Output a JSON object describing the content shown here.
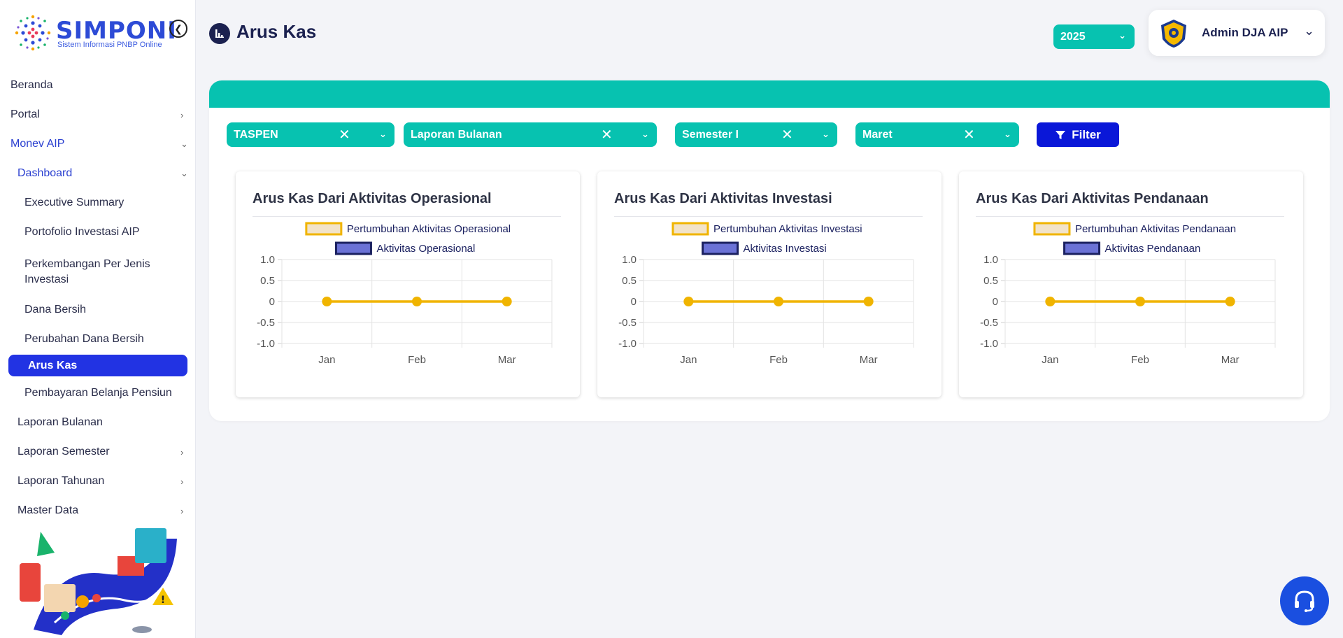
{
  "brand": {
    "name": "SIMPONI",
    "subtitle": "Sistem Informasi PNBP Online"
  },
  "nav": {
    "beranda": "Beranda",
    "portal": "Portal",
    "monev": "Monev AIP",
    "dashboard": "Dashboard",
    "executive_summary": "Executive Summary",
    "portofolio": "Portofolio Investasi AIP",
    "perkembangan": "Perkembangan Per Jenis Investasi",
    "dana_bersih": "Dana Bersih",
    "perubahan_dana": "Perubahan Dana Bersih",
    "arus_kas": "Arus Kas",
    "pembayaran": "Pembayaran Belanja Pensiun",
    "laporan_bulanan": "Laporan Bulanan",
    "laporan_semester": "Laporan Semester",
    "laporan_tahunan": "Laporan Tahunan",
    "master_data": "Master Data"
  },
  "header": {
    "title": "Arus Kas",
    "year": "2025",
    "user": "Admin DJA AIP"
  },
  "filters": {
    "entity": "TASPEN",
    "report": "Laporan Bulanan",
    "semester": "Semester I",
    "month": "Maret",
    "button": "Filter"
  },
  "colors": {
    "teal": "#07c2b0",
    "primary": "#0a17d8",
    "line": "#f0b400",
    "bar": "#6b72d6"
  },
  "chart_data": [
    {
      "type": "line",
      "title": "Arus Kas Dari Aktivitas Operasional",
      "categories": [
        "Jan",
        "Feb",
        "Mar"
      ],
      "series": [
        {
          "name": "Pertumbuhan Aktivitas Operasional",
          "values": [
            0,
            0,
            0
          ]
        },
        {
          "name": "Aktivitas Operasional",
          "values": [
            0,
            0,
            0
          ]
        }
      ],
      "yticks": [
        "1.0",
        "0.5",
        "0",
        "-0.5",
        "-1.0"
      ],
      "ylim": [
        -1,
        1
      ],
      "grid": true,
      "legend": "top"
    },
    {
      "type": "line",
      "title": "Arus Kas Dari Aktivitas Investasi",
      "categories": [
        "Jan",
        "Feb",
        "Mar"
      ],
      "series": [
        {
          "name": "Pertumbuhan Aktivitas Investasi",
          "values": [
            0,
            0,
            0
          ]
        },
        {
          "name": "Aktivitas Investasi",
          "values": [
            0,
            0,
            0
          ]
        }
      ],
      "yticks": [
        "1.0",
        "0.5",
        "0",
        "-0.5",
        "-1.0"
      ],
      "ylim": [
        -1,
        1
      ],
      "grid": true,
      "legend": "top"
    },
    {
      "type": "line",
      "title": "Arus Kas Dari Aktivitas Pendanaan",
      "categories": [
        "Jan",
        "Feb",
        "Mar"
      ],
      "series": [
        {
          "name": "Pertumbuhan Aktivitas Pendanaan",
          "values": [
            0,
            0,
            0
          ]
        },
        {
          "name": "Aktivitas Pendanaan",
          "values": [
            0,
            0,
            0
          ]
        }
      ],
      "yticks": [
        "1.0",
        "0.5",
        "0",
        "-0.5",
        "-1.0"
      ],
      "ylim": [
        -1,
        1
      ],
      "grid": true,
      "legend": "top"
    }
  ]
}
